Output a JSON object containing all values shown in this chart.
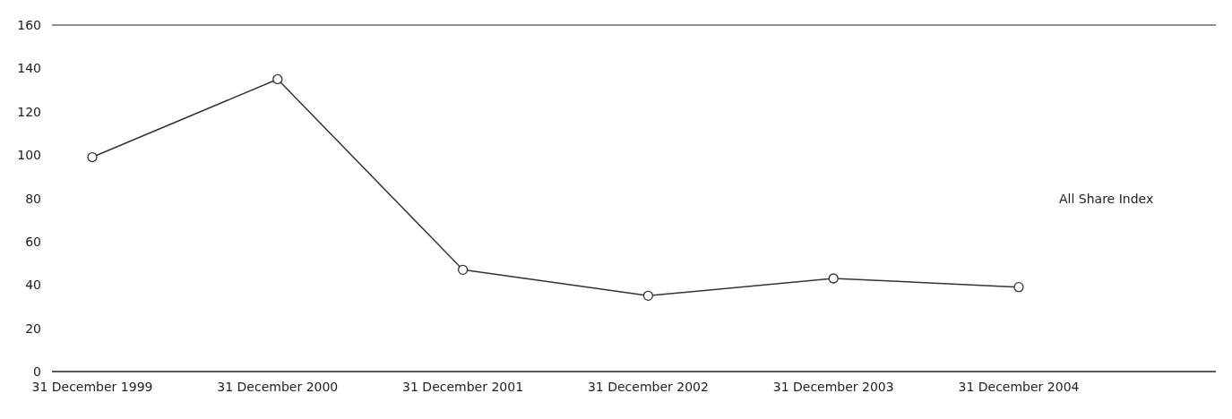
{
  "chart_data": {
    "type": "line",
    "categories": [
      "31 December 1999",
      "31 December 2000",
      "31 December 2001",
      "31 December 2002",
      "31 December 2003",
      "31 December 2004"
    ],
    "series": [
      {
        "color": "#333333",
        "values": [
          99,
          135,
          47,
          35,
          43,
          39
        ]
      }
    ],
    "ylim": [
      0,
      160
    ],
    "yticks": [
      0,
      20,
      40,
      60,
      80,
      100,
      120,
      140,
      160
    ],
    "marker": "circle",
    "annotations": [
      "All Share Index"
    ]
  }
}
